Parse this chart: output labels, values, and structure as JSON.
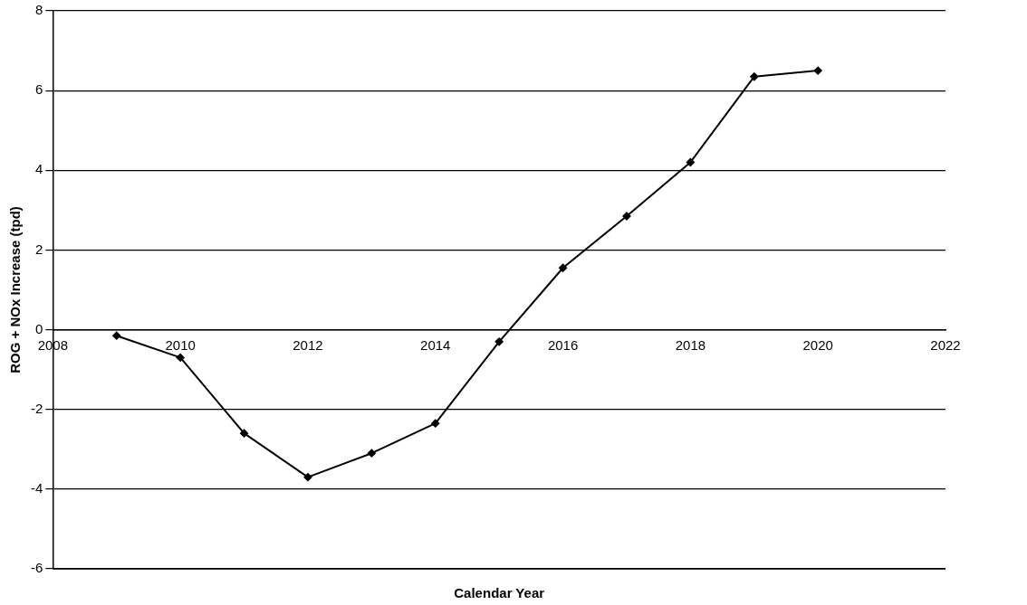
{
  "chart_data": {
    "type": "line",
    "xlabel": "Calendar Year",
    "ylabel": "ROG + NOx Increase (tpd)",
    "x": [
      2009,
      2010,
      2011,
      2012,
      2013,
      2014,
      2015,
      2016,
      2017,
      2018,
      2019,
      2020
    ],
    "series": [
      {
        "color": "#000000",
        "values": [
          -0.15,
          -0.7,
          -2.6,
          -3.7,
          -3.1,
          -2.35,
          -0.3,
          1.55,
          2.85,
          4.2,
          6.35,
          6.5
        ]
      }
    ],
    "xlim": [
      2008,
      2022
    ],
    "xticks": [
      2008,
      2010,
      2012,
      2014,
      2016,
      2018,
      2020,
      2022
    ],
    "ylim": [
      -6,
      8
    ],
    "yticks": [
      -6,
      -4,
      -2,
      0,
      2,
      4,
      6,
      8
    ],
    "grid": "y",
    "legend": false,
    "marker": "diamond",
    "line_style": "solid"
  }
}
